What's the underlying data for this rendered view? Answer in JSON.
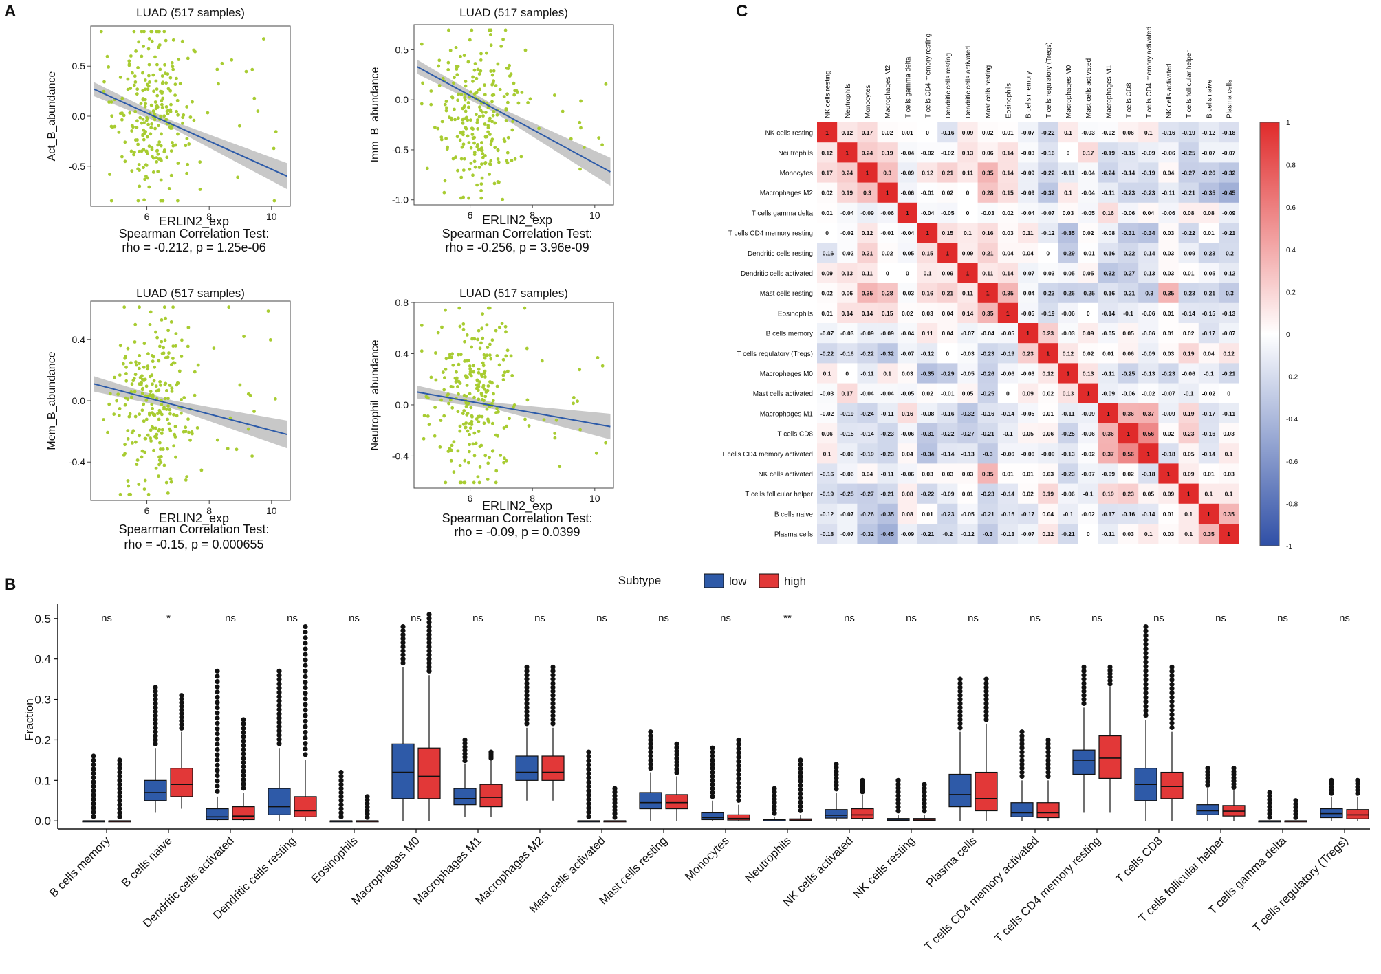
{
  "panels": {
    "A": "A",
    "B": "B",
    "C": "C"
  },
  "scatter_x_label": "ERLIN2_exp",
  "scatter_test_label": "Spearman Correlation Test:",
  "heatmap_labels": [
    "NK cells resting",
    "Neutrophils",
    "Monocytes",
    "Macrophages M2",
    "T cells gamma delta",
    "T cells CD4 memory resting",
    "Dendritic cells resting",
    "Dendritic cells activated",
    "Mast cells resting",
    "Eosinophils",
    "B cells memory",
    "T cells regulatory (Tregs)",
    "Macrophages M0",
    "Mast cells activated",
    "Macrophages M1",
    "T cells CD8",
    "T cells CD4 memory activated",
    "NK cells activated",
    "T cells follicular helper",
    "B cells naive",
    "Plasma cells"
  ],
  "chart_data": [
    {
      "id": "A1",
      "type": "scatter",
      "title": "LUAD (517 samples)",
      "xlabel": "ERLIN2_exp",
      "ylabel": "Act_B_abundance",
      "xlim": [
        4.2,
        10.6
      ],
      "ylim": [
        -0.9,
        0.9
      ],
      "xticks": [
        6,
        8,
        10
      ],
      "yticks": [
        -0.5,
        0.0,
        0.5
      ],
      "ytick_labels": [
        "-0.5",
        "0.0",
        "0.5"
      ],
      "fit": {
        "x": [
          4.3,
          10.5
        ],
        "y": [
          0.27,
          -0.6
        ],
        "se_left": 0.07,
        "se_mid": 0.035,
        "se_right": 0.13
      },
      "stat_text": "rho = -0.212, p = 1.25e-06",
      "point_color": "#a8cc32",
      "line_color": "#2c5aa8"
    },
    {
      "id": "A2",
      "type": "scatter",
      "title": "LUAD (517 samples)",
      "xlabel": "ERLIN2_exp",
      "ylabel": "Imm_B_abundance",
      "xlim": [
        4.2,
        10.6
      ],
      "ylim": [
        -1.05,
        0.75
      ],
      "xticks": [
        6,
        8,
        10
      ],
      "yticks": [
        -1.0,
        -0.5,
        0.0,
        0.5
      ],
      "ytick_labels": [
        "-1.0",
        "-0.5",
        "0.0",
        "0.5"
      ],
      "fit": {
        "x": [
          4.3,
          10.5
        ],
        "y": [
          0.33,
          -0.72
        ],
        "se_left": 0.07,
        "se_mid": 0.035,
        "se_right": 0.14
      },
      "stat_text": "rho = -0.256, p = 3.96e-09",
      "point_color": "#a8cc32",
      "line_color": "#2c5aa8"
    },
    {
      "id": "A3",
      "type": "scatter",
      "title": "LUAD (517 samples)",
      "xlabel": "ERLIN2_exp",
      "ylabel": "Mem_B_abundance",
      "xlim": [
        4.2,
        10.6
      ],
      "ylim": [
        -0.65,
        0.65
      ],
      "xticks": [
        6,
        8,
        10
      ],
      "yticks": [
        -0.4,
        0.0,
        0.4
      ],
      "ytick_labels": [
        "-0.4",
        "0.0",
        "0.4"
      ],
      "fit": {
        "x": [
          4.3,
          10.5
        ],
        "y": [
          0.11,
          -0.22
        ],
        "se_left": 0.05,
        "se_mid": 0.025,
        "se_right": 0.09
      },
      "stat_text": "rho = -0.15, p = 0.000655",
      "point_color": "#a8cc32",
      "line_color": "#2c5aa8"
    },
    {
      "id": "A4",
      "type": "scatter",
      "title": "LUAD (517 samples)",
      "xlabel": "ERLIN2_exp",
      "ylabel": "Neutrophil_abundance",
      "xlim": [
        4.2,
        10.6
      ],
      "ylim": [
        -0.65,
        0.8
      ],
      "xticks": [
        6,
        8,
        10
      ],
      "yticks": [
        -0.4,
        0.0,
        0.4,
        0.8
      ],
      "ytick_labels": [
        "-0.4",
        "0.0",
        "0.4",
        "0.8"
      ],
      "fit": {
        "x": [
          4.3,
          10.5
        ],
        "y": [
          0.1,
          -0.17
        ],
        "se_left": 0.05,
        "se_mid": 0.025,
        "se_right": 0.1
      },
      "stat_text": "rho = -0.09, p = 0.0399",
      "point_color": "#a8cc32",
      "line_color": "#2c5aa8"
    },
    {
      "id": "B",
      "type": "box",
      "ylabel": "Fraction",
      "ylim": [
        -0.02,
        0.52
      ],
      "yticks": [
        0.0,
        0.1,
        0.2,
        0.3,
        0.4,
        0.5
      ],
      "ytick_labels": [
        "0.0",
        "0.1",
        "0.2",
        "0.3",
        "0.4",
        "0.5"
      ],
      "legend_title": "Subtype",
      "series": [
        {
          "name": "low",
          "color": "#2e5aa8"
        },
        {
          "name": "high",
          "color": "#e23838"
        }
      ],
      "categories": [
        "B cells memory",
        "B cells naive",
        "Dendritic cells activated",
        "Dendritic cells resting",
        "Eosinophils",
        "Macrophages M0",
        "Macrophages M1",
        "Macrophages M2",
        "Mast cells activated",
        "Mast cells resting",
        "Monocytes",
        "Neutrophils",
        "NK cells activated",
        "NK cells resting",
        "Plasma cells",
        "T cells CD4 memory activated",
        "T cells CD4 memory resting",
        "T cells CD8",
        "T cells follicular helper",
        "T cells gamma delta",
        "T cells regulatory (Tregs)"
      ],
      "significance": [
        "ns",
        "*",
        "ns",
        "ns",
        "ns",
        "ns",
        "ns",
        "ns",
        "ns",
        "ns",
        "ns",
        "**",
        "ns",
        "ns",
        "ns",
        "ns",
        "ns",
        "ns",
        "ns",
        "ns",
        "ns"
      ],
      "low": [
        [
          0,
          0,
          0,
          0,
          0,
          0.16
        ],
        [
          0.02,
          0.05,
          0.07,
          0.1,
          0.18,
          0.33
        ],
        [
          0,
          0.003,
          0.01,
          0.03,
          0.06,
          0.37
        ],
        [
          0,
          0.015,
          0.035,
          0.08,
          0.18,
          0.37
        ],
        [
          0,
          0,
          0,
          0,
          0,
          0.12
        ],
        [
          0,
          0.055,
          0.12,
          0.19,
          0.38,
          0.48
        ],
        [
          0.01,
          0.04,
          0.055,
          0.08,
          0.14,
          0.2
        ],
        [
          0.05,
          0.1,
          0.12,
          0.16,
          0.23,
          0.38
        ],
        [
          0,
          0,
          0,
          0,
          0,
          0.17
        ],
        [
          0,
          0.03,
          0.045,
          0.07,
          0.12,
          0.22
        ],
        [
          0,
          0.003,
          0.008,
          0.02,
          0.05,
          0.18
        ],
        [
          0,
          0,
          0,
          0.003,
          0.01,
          0.08
        ],
        [
          0,
          0.007,
          0.014,
          0.028,
          0.07,
          0.14
        ],
        [
          0,
          0,
          0.002,
          0.006,
          0.015,
          0.1
        ],
        [
          0,
          0.035,
          0.065,
          0.115,
          0.22,
          0.35
        ],
        [
          0,
          0.01,
          0.02,
          0.045,
          0.1,
          0.22
        ],
        [
          0.02,
          0.115,
          0.15,
          0.175,
          0.28,
          0.38
        ],
        [
          0,
          0.05,
          0.09,
          0.13,
          0.25,
          0.48
        ],
        [
          0,
          0.015,
          0.025,
          0.04,
          0.08,
          0.13
        ],
        [
          0,
          0,
          0,
          0,
          0,
          0.07
        ],
        [
          0,
          0.008,
          0.018,
          0.03,
          0.06,
          0.1
        ]
      ],
      "high": [
        [
          0,
          0,
          0,
          0,
          0,
          0.15
        ],
        [
          0.03,
          0.06,
          0.09,
          0.13,
          0.22,
          0.31
        ],
        [
          0,
          0.003,
          0.012,
          0.035,
          0.07,
          0.25
        ],
        [
          0,
          0.01,
          0.025,
          0.06,
          0.15,
          0.48
        ],
        [
          0,
          0,
          0,
          0,
          0,
          0.06
        ],
        [
          0,
          0.055,
          0.11,
          0.18,
          0.36,
          0.51
        ],
        [
          0.01,
          0.035,
          0.058,
          0.09,
          0.15,
          0.17
        ],
        [
          0.05,
          0.1,
          0.12,
          0.16,
          0.23,
          0.38
        ],
        [
          0,
          0,
          0,
          0,
          0,
          0.08
        ],
        [
          0,
          0.03,
          0.045,
          0.065,
          0.11,
          0.19
        ],
        [
          0,
          0.002,
          0.006,
          0.015,
          0.04,
          0.2
        ],
        [
          0,
          0,
          0.002,
          0.005,
          0.015,
          0.15
        ],
        [
          0,
          0.006,
          0.015,
          0.03,
          0.065,
          0.1
        ],
        [
          0,
          0,
          0.002,
          0.006,
          0.015,
          0.09
        ],
        [
          0,
          0.025,
          0.055,
          0.12,
          0.24,
          0.35
        ],
        [
          0,
          0.008,
          0.02,
          0.045,
          0.1,
          0.2
        ],
        [
          0.02,
          0.105,
          0.155,
          0.21,
          0.33,
          0.38
        ],
        [
          0,
          0.055,
          0.085,
          0.12,
          0.22,
          0.38
        ],
        [
          0,
          0.012,
          0.024,
          0.038,
          0.075,
          0.13
        ],
        [
          0,
          0,
          0,
          0,
          0,
          0.05
        ],
        [
          0,
          0.005,
          0.015,
          0.028,
          0.06,
          0.1
        ]
      ]
    },
    {
      "id": "C",
      "type": "heatmap",
      "row_labels": [
        "NK cells resting",
        "Neutrophils",
        "Monocytes",
        "Macrophages M2",
        "T cells gamma delta",
        "T cells CD4 memory resting",
        "Dendritic cells resting",
        "Dendritic cells activated",
        "Mast cells resting",
        "Eosinophils",
        "B cells memory",
        "T cells regulatory (Tregs)",
        "Macrophages M0",
        "Mast cells activated",
        "Macrophages M1",
        "T cells CD8",
        "T cells CD4 memory activated",
        "NK cells activated",
        "T cells follicular helper",
        "B cells naive",
        "Plasma cells"
      ],
      "col_labels": [
        "NK cells resting",
        "Neutrophils",
        "Monocytes",
        "Macrophages M2",
        "T cells gamma delta",
        "T cells CD4 memory resting",
        "Dendritic cells resting",
        "Dendritic cells activated",
        "Mast cells resting",
        "Eosinophils",
        "B cells memory",
        "T cells regulatory (Tregs)",
        "Macrophages M0",
        "Mast cells activated",
        "Macrophages M1",
        "T cells CD8",
        "T cells CD4 memory activated",
        "NK cells activated",
        "T cells follicular helper",
        "B cells naive",
        "Plasma cells"
      ],
      "color_scale": {
        "min": -1,
        "max": 1,
        "low": "#2f4fa6",
        "mid": "#ffffff",
        "high": "#e02b2b"
      },
      "colorbar_ticks": [
        "1",
        "0.8",
        "0.6",
        "0.4",
        "0.2",
        "0",
        "-0.2",
        "-0.4",
        "-0.6",
        "-0.8",
        "-1"
      ],
      "values": [
        [
          1,
          0.12,
          0.17,
          0.02,
          0.01,
          0,
          -0.16,
          0.09,
          0.02,
          0.01,
          -0.07,
          -0.22,
          0.1,
          -0.03,
          -0.02,
          0.06,
          0.1,
          -0.16,
          -0.19,
          -0.12,
          -0.18
        ],
        [
          0.12,
          1,
          0.24,
          0.19,
          -0.04,
          -0.02,
          -0.02,
          0.13,
          0.06,
          0.14,
          -0.03,
          -0.16,
          0,
          0.17,
          -0.19,
          -0.15,
          -0.09,
          -0.06,
          -0.25,
          -0.07,
          -0.07
        ],
        [
          0.17,
          0.24,
          1,
          0.3,
          -0.09,
          0.12,
          0.21,
          0.11,
          0.35,
          0.14,
          -0.09,
          -0.22,
          -0.11,
          -0.04,
          -0.24,
          -0.14,
          -0.19,
          0.04,
          -0.27,
          -0.26,
          -0.32
        ],
        [
          0.02,
          0.19,
          0.3,
          1,
          -0.06,
          -0.01,
          0.02,
          0,
          0.28,
          0.15,
          -0.09,
          -0.32,
          0.1,
          -0.04,
          -0.11,
          -0.23,
          -0.23,
          -0.11,
          -0.21,
          -0.35,
          -0.45
        ],
        [
          0.01,
          -0.04,
          -0.09,
          -0.06,
          1,
          -0.04,
          -0.05,
          0,
          -0.03,
          0.02,
          -0.04,
          -0.07,
          0.03,
          -0.05,
          0.16,
          -0.06,
          0.04,
          -0.06,
          0.08,
          0.08,
          -0.09
        ],
        [
          0,
          -0.02,
          0.12,
          -0.01,
          -0.04,
          1,
          0.15,
          0.1,
          0.16,
          0.03,
          0.11,
          -0.12,
          -0.35,
          0.02,
          -0.08,
          -0.31,
          -0.34,
          0.03,
          -0.22,
          0.01,
          -0.21
        ],
        [
          -0.16,
          -0.02,
          0.21,
          0.02,
          -0.05,
          0.15,
          1,
          0.09,
          0.21,
          0.04,
          0.04,
          0,
          -0.29,
          -0.01,
          -0.16,
          -0.22,
          -0.14,
          0.03,
          -0.09,
          -0.23,
          -0.2
        ],
        [
          0.09,
          0.13,
          0.11,
          0,
          0,
          0.1,
          0.09,
          1,
          0.11,
          0.14,
          -0.07,
          -0.03,
          -0.05,
          0.05,
          -0.32,
          -0.27,
          -0.13,
          0.03,
          0.01,
          -0.05,
          -0.12
        ],
        [
          0.02,
          0.06,
          0.35,
          0.28,
          -0.03,
          0.16,
          0.21,
          0.11,
          1,
          0.35,
          -0.04,
          -0.23,
          -0.26,
          -0.25,
          -0.16,
          -0.21,
          -0.3,
          0.35,
          -0.23,
          -0.21,
          -0.3
        ],
        [
          0.01,
          0.14,
          0.14,
          0.15,
          0.02,
          0.03,
          0.04,
          0.14,
          0.35,
          1,
          -0.05,
          -0.19,
          -0.06,
          0,
          -0.14,
          -0.1,
          -0.06,
          0.01,
          -0.14,
          -0.15,
          -0.13
        ],
        [
          -0.07,
          -0.03,
          -0.09,
          -0.09,
          -0.04,
          0.11,
          0.04,
          -0.07,
          -0.04,
          -0.05,
          1,
          0.23,
          -0.03,
          0.09,
          -0.05,
          0.05,
          -0.06,
          0.01,
          0.02,
          -0.17,
          -0.07
        ],
        [
          -0.22,
          -0.16,
          -0.22,
          -0.32,
          -0.07,
          -0.12,
          0,
          -0.03,
          -0.23,
          -0.19,
          0.23,
          1,
          0.12,
          0.02,
          0.01,
          0.06,
          -0.09,
          0.03,
          0.19,
          0.04,
          0.12
        ],
        [
          0.1,
          0,
          -0.11,
          0.1,
          0.03,
          -0.35,
          -0.29,
          -0.05,
          -0.26,
          -0.06,
          -0.03,
          0.12,
          1,
          0.13,
          -0.11,
          -0.25,
          -0.13,
          -0.23,
          -0.06,
          -0.1,
          -0.21
        ],
        [
          -0.03,
          0.17,
          -0.04,
          -0.04,
          -0.05,
          0.02,
          -0.01,
          0.05,
          -0.25,
          0,
          0.09,
          0.02,
          0.13,
          1,
          -0.09,
          -0.06,
          -0.02,
          -0.07,
          -0.1,
          -0.02,
          0
        ],
        [
          -0.02,
          -0.19,
          -0.24,
          -0.11,
          0.16,
          -0.08,
          -0.16,
          -0.32,
          -0.16,
          -0.14,
          -0.05,
          0.01,
          -0.11,
          -0.09,
          1,
          0.36,
          0.37,
          -0.09,
          0.19,
          -0.17,
          -0.11
        ],
        [
          0.06,
          -0.15,
          -0.14,
          -0.23,
          -0.06,
          -0.31,
          -0.22,
          -0.27,
          -0.21,
          -0.1,
          0.05,
          0.06,
          -0.25,
          -0.06,
          0.36,
          1,
          0.56,
          0.02,
          0.23,
          -0.16,
          0.03
        ],
        [
          0.1,
          -0.09,
          -0.19,
          -0.23,
          0.04,
          -0.34,
          -0.14,
          -0.13,
          -0.3,
          -0.06,
          -0.06,
          -0.09,
          -0.13,
          -0.02,
          0.37,
          0.56,
          1,
          -0.18,
          0.05,
          -0.14,
          0.1
        ],
        [
          -0.16,
          -0.06,
          0.04,
          -0.11,
          -0.06,
          0.03,
          0.03,
          0.03,
          0.35,
          0.01,
          0.01,
          0.03,
          -0.23,
          -0.07,
          -0.09,
          0.02,
          -0.18,
          1,
          0.09,
          0.01,
          0.03
        ],
        [
          -0.19,
          -0.25,
          -0.27,
          -0.21,
          0.08,
          -0.22,
          -0.09,
          0.01,
          -0.23,
          -0.14,
          0.02,
          0.19,
          -0.06,
          -0.1,
          0.19,
          0.23,
          0.05,
          0.09,
          1,
          0.1,
          0.1
        ],
        [
          -0.12,
          -0.07,
          -0.26,
          -0.35,
          0.08,
          0.01,
          -0.23,
          -0.05,
          -0.21,
          -0.15,
          -0.17,
          0.04,
          -0.1,
          -0.02,
          -0.17,
          -0.16,
          -0.14,
          0.01,
          0.1,
          1,
          0.35
        ],
        [
          -0.18,
          -0.07,
          -0.32,
          -0.45,
          -0.09,
          -0.21,
          -0.2,
          -0.12,
          -0.3,
          -0.13,
          -0.07,
          0.12,
          -0.21,
          0,
          -0.11,
          0.03,
          0.1,
          0.03,
          0.1,
          0.35,
          1
        ]
      ]
    }
  ]
}
